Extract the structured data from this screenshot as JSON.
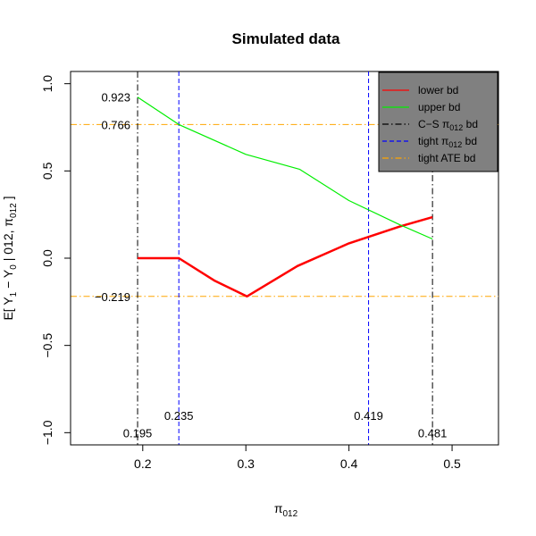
{
  "chart_data": {
    "type": "line",
    "title": "Simulated data",
    "xlabel": "π",
    "xlabel_sub": "012",
    "ylabel": {
      "prefix": "E[ Y",
      "sub1": "1",
      "mid": " − Y",
      "sub2": "0",
      "mid2": " | 012,  π",
      "sub3": "012",
      "suffix": " ]"
    },
    "xlim": [
      0.13,
      0.545
    ],
    "ylim": [
      -1.07,
      1.07
    ],
    "x_ticks": [
      {
        "value": 0.2,
        "label": "0.2"
      },
      {
        "value": 0.3,
        "label": "0.3"
      },
      {
        "value": 0.4,
        "label": "0.4"
      },
      {
        "value": 0.5,
        "label": "0.5"
      }
    ],
    "y_ticks": [
      {
        "value": -1.0,
        "label": "−1.0"
      },
      {
        "value": -0.5,
        "label": "−0.5"
      },
      {
        "value": 0.0,
        "label": "0.0"
      },
      {
        "value": 0.5,
        "label": "0.5"
      },
      {
        "value": 1.0,
        "label": "1.0"
      }
    ],
    "grid": false,
    "legend_position": "top-right",
    "series": [
      {
        "name": "lower bd",
        "color": "#ff0000",
        "style": "solid",
        "width": 2.5,
        "points": [
          [
            0.195,
            0.0
          ],
          [
            0.235,
            0.0
          ],
          [
            0.27,
            -0.13
          ],
          [
            0.301,
            -0.219
          ],
          [
            0.35,
            -0.045
          ],
          [
            0.4,
            0.085
          ],
          [
            0.45,
            0.183
          ],
          [
            0.481,
            0.235
          ]
        ]
      },
      {
        "name": "upper bd",
        "color": "#00ee00",
        "style": "solid",
        "width": 1.2,
        "points": [
          [
            0.195,
            0.923
          ],
          [
            0.235,
            0.766
          ],
          [
            0.3,
            0.595
          ],
          [
            0.352,
            0.51
          ],
          [
            0.4,
            0.33
          ],
          [
            0.45,
            0.19
          ],
          [
            0.481,
            0.11
          ]
        ]
      }
    ],
    "vlines": [
      {
        "x": 0.195,
        "color": "#000000",
        "style": "dashdot",
        "label": "0.195",
        "label_y": -1.0
      },
      {
        "x": 0.235,
        "color": "#0000ff",
        "style": "dashed",
        "label": "0.235",
        "label_y": -0.9
      },
      {
        "x": 0.419,
        "color": "#0000ff",
        "style": "dashed",
        "label": "0.419",
        "label_y": -0.9
      },
      {
        "x": 0.481,
        "color": "#000000",
        "style": "dashdot",
        "label": "0.481",
        "label_y": -1.0
      }
    ],
    "hlines": [
      {
        "y": 0.766,
        "color": "#ffa500",
        "style": "dashdot",
        "label": "0.766"
      },
      {
        "y": -0.219,
        "color": "#ffa500",
        "style": "dashdot",
        "label": "−0.219"
      }
    ],
    "annotations": [
      {
        "text": "0.923",
        "x": 0.195,
        "y": 0.923
      }
    ],
    "legend": {
      "background": "#808080",
      "entries": [
        {
          "label": "lower bd",
          "color": "#ff0000",
          "style": "solid"
        },
        {
          "label": "upper bd",
          "color": "#00ee00",
          "style": "solid"
        },
        {
          "label": "C−S π",
          "label_sub": "012",
          "label_suffix": " bd",
          "color": "#000000",
          "style": "dashdot"
        },
        {
          "label": "tight π",
          "label_sub": "012",
          "label_suffix": " bd",
          "color": "#0000ff",
          "style": "dashed"
        },
        {
          "label": "tight ATE bd",
          "color": "#ffa500",
          "style": "dashdot"
        }
      ]
    }
  }
}
